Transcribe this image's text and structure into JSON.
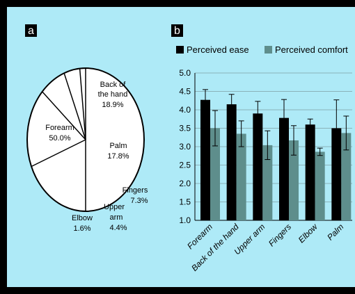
{
  "panels": {
    "a": "a",
    "b": "b"
  },
  "chart_data": [
    {
      "type": "pie",
      "panel": "a",
      "slices": [
        {
          "name": "Forearm",
          "value": 50.0,
          "label": "50.0%"
        },
        {
          "name": "Back of the hand",
          "value": 18.9,
          "label": "18.9%"
        },
        {
          "name": "Palm",
          "value": 17.8,
          "label": "17.8%"
        },
        {
          "name": "Fingers",
          "value": 7.3,
          "label": "7.3%"
        },
        {
          "name": "Upper arm",
          "value": 4.4,
          "label": "4.4%"
        },
        {
          "name": "Elbow",
          "value": 1.6,
          "label": "1.6%"
        }
      ],
      "fill_color": "#ffffff",
      "stroke_color": "#000000"
    },
    {
      "type": "bar",
      "panel": "b",
      "categories": [
        "Forearm",
        "Back of the hand",
        "Upper arm",
        "Fingers",
        "Elbow",
        "Palm"
      ],
      "series": [
        {
          "name": "Perceived ease",
          "values": [
            4.27,
            4.15,
            3.9,
            3.78,
            3.6,
            3.5
          ],
          "errors": [
            0.28,
            0.27,
            0.33,
            0.5,
            0.15,
            0.77
          ],
          "color": "#000000"
        },
        {
          "name": "Perceived comfort",
          "values": [
            3.5,
            3.35,
            3.04,
            3.17,
            2.86,
            3.37
          ],
          "errors": [
            0.48,
            0.35,
            0.39,
            0.4,
            0.1,
            0.46
          ],
          "color": "#5e8e8c"
        }
      ],
      "ylim": [
        1.0,
        5.0
      ],
      "yticks": [
        "1.0",
        "1.5",
        "2.0",
        "2.5",
        "3.0",
        "3.5",
        "4.0",
        "4.5",
        "5.0"
      ],
      "grid": true,
      "legend_position": "top",
      "xlabel": "",
      "ylabel": ""
    }
  ]
}
